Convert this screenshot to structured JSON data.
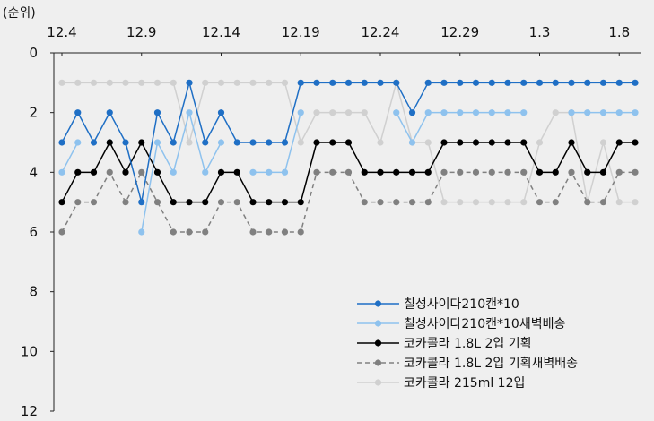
{
  "chart_data": {
    "type": "line",
    "title": "",
    "y_unit_label": "(순위)",
    "xlabel": "",
    "ylabel": "",
    "x_axis_position": "top",
    "y_inverted": true,
    "ylim": [
      0,
      12
    ],
    "y_ticks": [
      0,
      2,
      4,
      6,
      8,
      10,
      12
    ],
    "x_tick_labels": [
      "12.4",
      "12.9",
      "12.14",
      "12.19",
      "12.24",
      "12.29",
      "1.3",
      "1.8"
    ],
    "x_tick_interval_days": 5,
    "x": [
      "12.4",
      "12.5",
      "12.6",
      "12.7",
      "12.8",
      "12.9",
      "12.10",
      "12.11",
      "12.12",
      "12.13",
      "12.14",
      "12.15",
      "12.16",
      "12.17",
      "12.18",
      "12.19",
      "12.20",
      "12.21",
      "12.22",
      "12.23",
      "12.24",
      "12.25",
      "12.26",
      "12.27",
      "12.28",
      "12.29",
      "12.30",
      "12.31",
      "1.1",
      "1.2",
      "1.3",
      "1.4",
      "1.5",
      "1.6",
      "1.7",
      "1.8",
      "1.9"
    ],
    "grid": false,
    "legend_position": "bottom-right",
    "series": [
      {
        "name": "칠성사이다210캔*10",
        "color": "#1f6fc5",
        "marker": "circle",
        "dash": "solid",
        "values": [
          3,
          2,
          3,
          2,
          3,
          5,
          2,
          3,
          1,
          3,
          2,
          3,
          3,
          3,
          3,
          1,
          1,
          1,
          1,
          1,
          1,
          1,
          2,
          1,
          1,
          1,
          1,
          1,
          1,
          1,
          1,
          1,
          1,
          1,
          1,
          1,
          1
        ]
      },
      {
        "name": "칠성사이다210캔*10새벽배송",
        "color": "#8ec2ee",
        "marker": "circle",
        "dash": "solid",
        "values": [
          4,
          3,
          null,
          3,
          null,
          6,
          3,
          4,
          2,
          4,
          3,
          null,
          4,
          4,
          4,
          2,
          null,
          null,
          null,
          null,
          null,
          2,
          3,
          2,
          2,
          2,
          2,
          2,
          2,
          2,
          null,
          null,
          2,
          2,
          2,
          2,
          2
        ]
      },
      {
        "name": "코카콜라 1.8L 2입 기획",
        "color": "#000000",
        "marker": "circle",
        "dash": "solid",
        "values": [
          5,
          4,
          4,
          3,
          4,
          3,
          4,
          5,
          5,
          5,
          4,
          4,
          5,
          5,
          5,
          5,
          3,
          3,
          3,
          4,
          4,
          4,
          4,
          4,
          3,
          3,
          3,
          3,
          3,
          3,
          4,
          4,
          3,
          4,
          4,
          3,
          3
        ]
      },
      {
        "name": "코카콜라 1.8L 2입 기획새벽배송",
        "color": "#808080",
        "marker": "circle",
        "dash": "dashed",
        "values": [
          6,
          5,
          5,
          4,
          5,
          4,
          5,
          6,
          6,
          6,
          5,
          5,
          6,
          6,
          6,
          6,
          4,
          4,
          4,
          5,
          5,
          5,
          5,
          5,
          4,
          4,
          4,
          4,
          4,
          4,
          5,
          5,
          4,
          5,
          5,
          4,
          4
        ]
      },
      {
        "name": "코카콜라 215ml 12입",
        "color": "#d0d0d0",
        "marker": "circle",
        "dash": "solid",
        "values": [
          1,
          1,
          1,
          1,
          1,
          1,
          1,
          1,
          3,
          1,
          1,
          1,
          1,
          1,
          1,
          3,
          2,
          2,
          2,
          2,
          3,
          1,
          3,
          3,
          5,
          5,
          5,
          5,
          5,
          5,
          3,
          2,
          2,
          5,
          3,
          5,
          5
        ]
      }
    ]
  }
}
